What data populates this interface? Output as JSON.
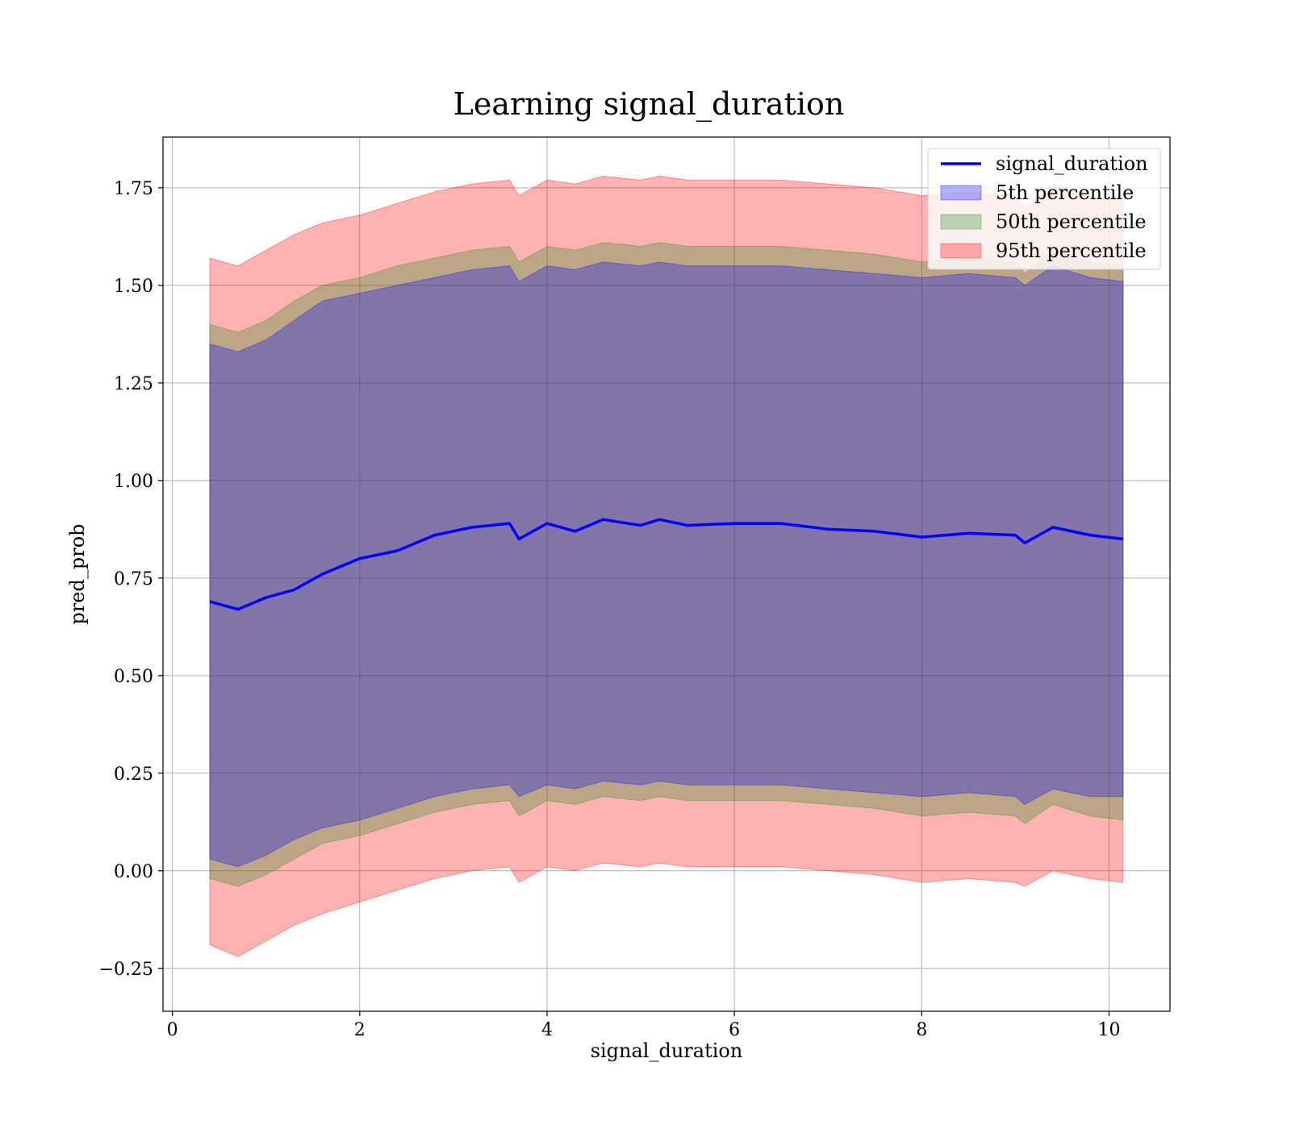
{
  "chart_data": {
    "type": "line",
    "title": "Learning signal_duration",
    "xlabel": "signal_duration",
    "ylabel": "pred_prob",
    "xlim": [
      -0.1,
      10.65
    ],
    "ylim": [
      -0.36,
      1.88
    ],
    "xticks": [
      0,
      2,
      4,
      6,
      8,
      10
    ],
    "xtick_labels": [
      "0",
      "2",
      "4",
      "6",
      "8",
      "10"
    ],
    "yticks": [
      -0.25,
      0,
      0.25,
      0.5,
      0.75,
      1.0,
      1.25,
      1.5,
      1.75
    ],
    "ytick_labels": [
      "−0.25",
      "0.00",
      "0.25",
      "0.50",
      "0.75",
      "1.00",
      "1.25",
      "1.50",
      "1.75"
    ],
    "grid": true,
    "legend_position": "top-right",
    "x": [
      0.4,
      0.7,
      1.0,
      1.3,
      1.6,
      2.0,
      2.4,
      2.8,
      3.2,
      3.6,
      3.7,
      4.0,
      4.3,
      4.6,
      5.0,
      5.2,
      5.5,
      6.0,
      6.5,
      7.0,
      7.5,
      8.0,
      8.5,
      9.0,
      9.1,
      9.4,
      9.8,
      10.15
    ],
    "series": [
      {
        "name": "signal_duration",
        "kind": "line",
        "color": "#0000ff",
        "values": [
          0.69,
          0.67,
          0.7,
          0.72,
          0.76,
          0.8,
          0.82,
          0.86,
          0.88,
          0.89,
          0.85,
          0.89,
          0.87,
          0.9,
          0.885,
          0.9,
          0.885,
          0.89,
          0.89,
          0.875,
          0.87,
          0.855,
          0.865,
          0.86,
          0.84,
          0.88,
          0.86,
          0.85
        ]
      },
      {
        "name": "5th percentile",
        "kind": "band",
        "color": "#0000ff",
        "upper": [
          1.35,
          1.33,
          1.36,
          1.41,
          1.46,
          1.48,
          1.5,
          1.52,
          1.54,
          1.55,
          1.51,
          1.55,
          1.54,
          1.56,
          1.55,
          1.56,
          1.55,
          1.55,
          1.55,
          1.54,
          1.53,
          1.52,
          1.53,
          1.52,
          1.5,
          1.55,
          1.52,
          1.51
        ],
        "lower": [
          0.03,
          0.01,
          0.04,
          0.08,
          0.11,
          0.13,
          0.16,
          0.19,
          0.21,
          0.22,
          0.19,
          0.22,
          0.21,
          0.23,
          0.22,
          0.23,
          0.22,
          0.22,
          0.22,
          0.21,
          0.2,
          0.19,
          0.2,
          0.19,
          0.17,
          0.21,
          0.19,
          0.19
        ]
      },
      {
        "name": "50th percentile",
        "kind": "band",
        "color": "#228b22",
        "upper": [
          1.4,
          1.38,
          1.41,
          1.46,
          1.5,
          1.52,
          1.55,
          1.57,
          1.59,
          1.6,
          1.56,
          1.6,
          1.59,
          1.61,
          1.6,
          1.61,
          1.6,
          1.6,
          1.6,
          1.59,
          1.58,
          1.56,
          1.57,
          1.56,
          1.53,
          1.59,
          1.56,
          1.55
        ],
        "lower": [
          -0.02,
          -0.04,
          -0.01,
          0.03,
          0.07,
          0.09,
          0.12,
          0.15,
          0.17,
          0.18,
          0.14,
          0.18,
          0.17,
          0.19,
          0.18,
          0.19,
          0.18,
          0.18,
          0.18,
          0.17,
          0.16,
          0.14,
          0.15,
          0.14,
          0.12,
          0.17,
          0.14,
          0.13
        ]
      },
      {
        "name": "95th percentile",
        "kind": "band",
        "color": "#ff0000",
        "upper": [
          1.57,
          1.55,
          1.59,
          1.63,
          1.66,
          1.68,
          1.71,
          1.74,
          1.76,
          1.77,
          1.73,
          1.77,
          1.76,
          1.78,
          1.77,
          1.78,
          1.77,
          1.77,
          1.77,
          1.76,
          1.75,
          1.73,
          1.74,
          1.73,
          1.7,
          1.76,
          1.73,
          1.72
        ],
        "lower": [
          -0.19,
          -0.22,
          -0.18,
          -0.14,
          -0.11,
          -0.08,
          -0.05,
          -0.02,
          0.0,
          0.01,
          -0.03,
          0.01,
          0.0,
          0.02,
          0.01,
          0.02,
          0.01,
          0.01,
          0.01,
          0.0,
          -0.01,
          -0.03,
          -0.02,
          -0.03,
          -0.04,
          0.0,
          -0.02,
          -0.03
        ]
      }
    ]
  }
}
